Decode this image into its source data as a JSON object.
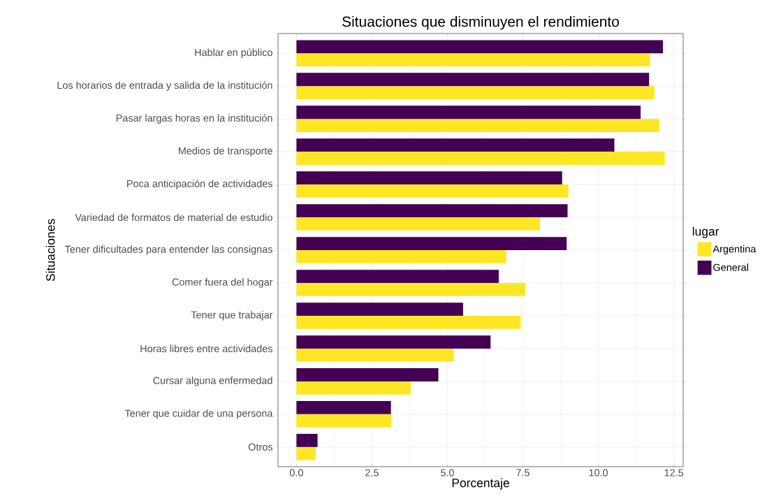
{
  "chart_data": {
    "type": "bar",
    "orientation": "horizontal",
    "title": "Situaciones que disminuyen el rendimiento",
    "xlabel": "Porcentaje",
    "ylabel": "Situaciones",
    "legend_title": "lugar",
    "categories": [
      "Hablar en público",
      "Los horarios de entrada y salida de la institución",
      "Pasar largas horas en la institución",
      "Medios de transporte",
      "Poca anticipación de actividades",
      "Variedad de formatos de material de estudio",
      "Tener dificultades para entender las consignas",
      "Comer fuera del hogar",
      "Tener que trabajar",
      "Horas libres entre actividades",
      "Cursar alguna enfermedad",
      "Tener que cuidar de una persona",
      "Otros"
    ],
    "series": [
      {
        "name": "Argentina",
        "color": "#fde725",
        "values": [
          11.71,
          11.86,
          12.02,
          12.2,
          9.01,
          8.07,
          6.95,
          7.58,
          7.43,
          5.21,
          3.79,
          3.15,
          0.64
        ]
      },
      {
        "name": "General",
        "color": "#440154",
        "values": [
          12.14,
          11.68,
          11.4,
          10.53,
          8.8,
          8.98,
          8.95,
          6.7,
          5.52,
          6.43,
          4.7,
          3.13,
          0.7
        ]
      }
    ],
    "xlim": [
      -0.61,
      12.81
    ],
    "xticks": [
      {
        "value": 0,
        "label": "0.0"
      },
      {
        "value": 2.5,
        "label": "2.5"
      },
      {
        "value": 5,
        "label": "5.0"
      },
      {
        "value": 7.5,
        "label": "7.5"
      },
      {
        "value": 10,
        "label": "10.0"
      },
      {
        "value": 12.5,
        "label": "12.5"
      }
    ],
    "grid": true,
    "legend": "right"
  }
}
